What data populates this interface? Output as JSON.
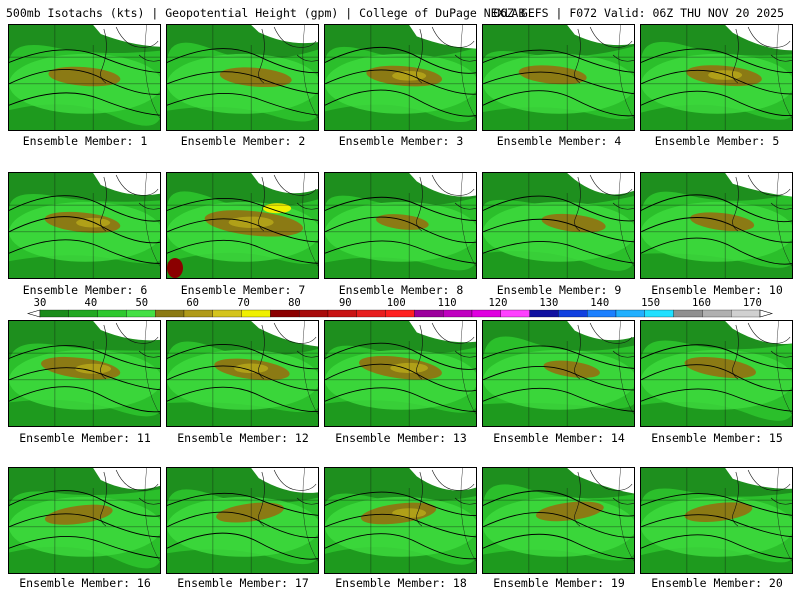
{
  "header": {
    "left": "500mb Isotachs (kts) | Geopotential Height (gpm) | College of DuPage NEXLAB",
    "right": "06Z GEFS | F072 Valid: 06Z THU NOV 20 2025"
  },
  "panels": [
    {
      "label": "Ensemble Member: 1",
      "intensity": 0.55
    },
    {
      "label": "Ensemble Member: 2",
      "intensity": 0.55
    },
    {
      "label": "Ensemble Member: 3",
      "intensity": 0.6
    },
    {
      "label": "Ensemble Member: 4",
      "intensity": 0.5
    },
    {
      "label": "Ensemble Member: 5",
      "intensity": 0.6
    },
    {
      "label": "Ensemble Member: 6",
      "intensity": 0.6
    },
    {
      "label": "Ensemble Member: 7",
      "intensity": 0.9
    },
    {
      "label": "Ensemble Member: 8",
      "intensity": 0.3
    },
    {
      "label": "Ensemble Member: 9",
      "intensity": 0.45
    },
    {
      "label": "Ensemble Member: 10",
      "intensity": 0.45
    },
    {
      "label": "Ensemble Member: 11",
      "intensity": 0.65
    },
    {
      "label": "Ensemble Member: 12",
      "intensity": 0.6
    },
    {
      "label": "Ensemble Member: 13",
      "intensity": 0.7
    },
    {
      "label": "Ensemble Member: 14",
      "intensity": 0.35
    },
    {
      "label": "Ensemble Member: 15",
      "intensity": 0.55
    },
    {
      "label": "Ensemble Member: 16",
      "intensity": 0.5
    },
    {
      "label": "Ensemble Member: 17",
      "intensity": 0.5
    },
    {
      "label": "Ensemble Member: 18",
      "intensity": 0.6
    },
    {
      "label": "Ensemble Member: 19",
      "intensity": 0.5
    },
    {
      "label": "Ensemble Member: 20",
      "intensity": 0.5
    }
  ],
  "color_scale": {
    "ticks": [
      "30",
      "40",
      "50",
      "60",
      "70",
      "80",
      "90",
      "100",
      "110",
      "120",
      "130",
      "140",
      "150",
      "160",
      "170"
    ],
    "colors": [
      "#1a8c1a",
      "#22a822",
      "#2ec82e",
      "#44e044",
      "#8b7a14",
      "#b09a18",
      "#d4c41c",
      "#f0f000",
      "#8b0000",
      "#a80c0c",
      "#c81414",
      "#e81e1e",
      "#ff2020",
      "#9c009c",
      "#c000c0",
      "#e000e0",
      "#ff40ff",
      "#1010a0",
      "#1040e0",
      "#1c80ff",
      "#20b0ff",
      "#20e0ff",
      "#909090",
      "#b0b0b0",
      "#d0d0d0"
    ]
  }
}
